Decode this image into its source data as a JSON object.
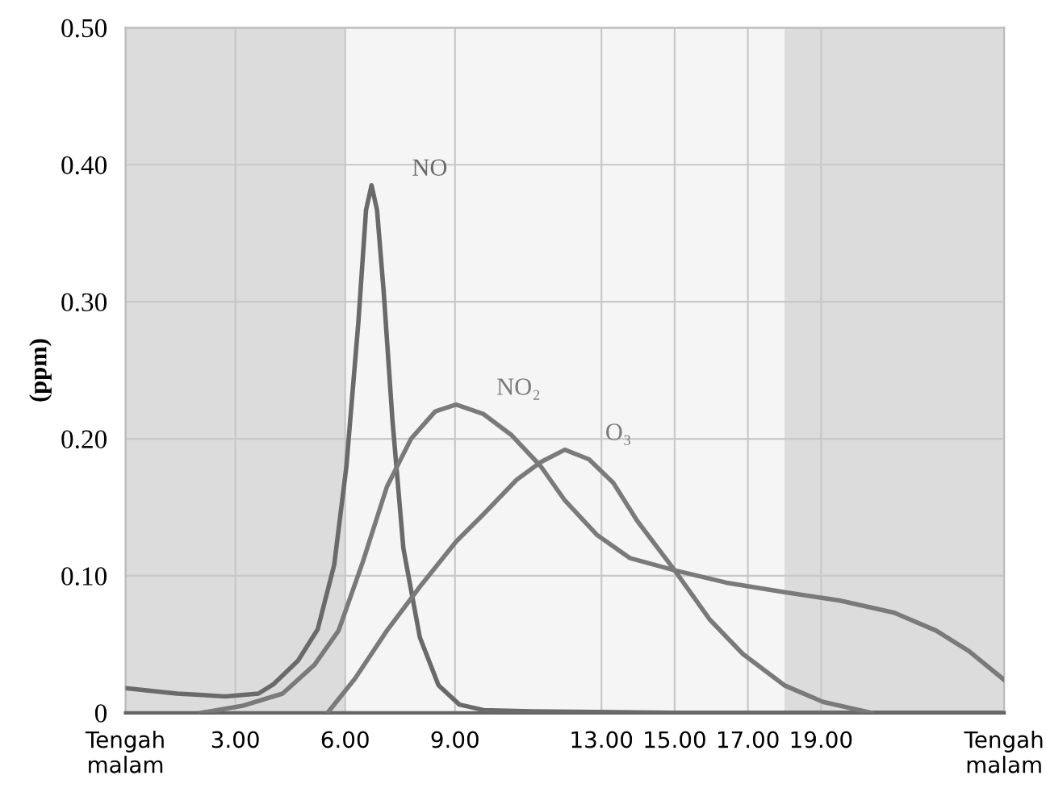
{
  "chart_data": {
    "type": "line",
    "ylabel": "(ppm)",
    "xlim": [
      0,
      24
    ],
    "ylim": [
      0,
      0.5
    ],
    "xticks": [
      {
        "value": 0,
        "label": "Tengah\nmalam"
      },
      {
        "value": 3,
        "label": "3.00"
      },
      {
        "value": 6,
        "label": "6.00"
      },
      {
        "value": 9,
        "label": "9.00"
      },
      {
        "value": 13,
        "label": "13.00"
      },
      {
        "value": 15,
        "label": "15.00"
      },
      {
        "value": 17,
        "label": "17.00"
      },
      {
        "value": 19,
        "label": "19.00"
      },
      {
        "value": 24,
        "label": "Tengah\nmalam"
      }
    ],
    "yticks": [
      0,
      {
        "value": 0.1,
        "label": "0.10"
      },
      {
        "value": 0.2,
        "label": "0.20"
      },
      {
        "value": 0.3,
        "label": "0.30"
      },
      {
        "value": 0.4,
        "label": "0.40"
      },
      {
        "value": 0.5,
        "label": "0.50"
      }
    ],
    "grid": true,
    "marker": "none",
    "line_style": "solid",
    "bands": [
      {
        "axis": "x",
        "from": 0,
        "to": 6,
        "color": "#dcdcdc"
      },
      {
        "axis": "x",
        "from": 6,
        "to": 18,
        "color": "#f5f5f5"
      },
      {
        "axis": "x",
        "from": 18,
        "to": 24,
        "color": "#dcdcdc"
      }
    ],
    "series": [
      {
        "name": "NO",
        "color": "#6a6a6a",
        "x": [
          0,
          1.41,
          2.73,
          3.63,
          4.05,
          4.71,
          5.25,
          5.7,
          6.03,
          6.36,
          6.57,
          6.72,
          6.87,
          7.05,
          7.29,
          7.59,
          8.04,
          8.55,
          9.12,
          9.78,
          11.1,
          15,
          18,
          21,
          24
        ],
        "values": [
          0.018,
          0.014,
          0.012,
          0.014,
          0.021,
          0.038,
          0.061,
          0.108,
          0.179,
          0.285,
          0.367,
          0.385,
          0.367,
          0.308,
          0.214,
          0.12,
          0.055,
          0.02,
          0.006,
          0.002,
          0.001,
          0,
          0,
          0,
          0
        ]
      },
      {
        "name": "NO₂",
        "color": "#7a7a7a",
        "x": [
          2.07,
          3.18,
          4.29,
          5.16,
          5.82,
          6.48,
          7.14,
          7.8,
          8.46,
          9.03,
          9.78,
          10.53,
          11.34,
          12,
          12.87,
          13.77,
          15,
          16.41,
          18,
          19.5,
          21,
          22.14,
          23.04,
          24
        ],
        "values": [
          0,
          0.005,
          0.014,
          0.035,
          0.06,
          0.11,
          0.165,
          0.2,
          0.22,
          0.225,
          0.218,
          0.203,
          0.18,
          0.155,
          0.13,
          0.113,
          0.104,
          0.095,
          0.088,
          0.082,
          0.073,
          0.06,
          0.045,
          0.024
        ]
      },
      {
        "name": "O₃",
        "color": "#7a7a7a",
        "x": [
          5.52,
          6.27,
          7.14,
          8.04,
          9.03,
          9.78,
          10.68,
          11.34,
          12,
          12.66,
          13.32,
          13.98,
          15,
          15.96,
          16.86,
          18,
          19.05,
          20.37
        ],
        "values": [
          0,
          0.025,
          0.06,
          0.092,
          0.125,
          0.145,
          0.17,
          0.183,
          0.192,
          0.185,
          0.168,
          0.14,
          0.104,
          0.068,
          0.043,
          0.02,
          0.008,
          0
        ]
      }
    ]
  }
}
